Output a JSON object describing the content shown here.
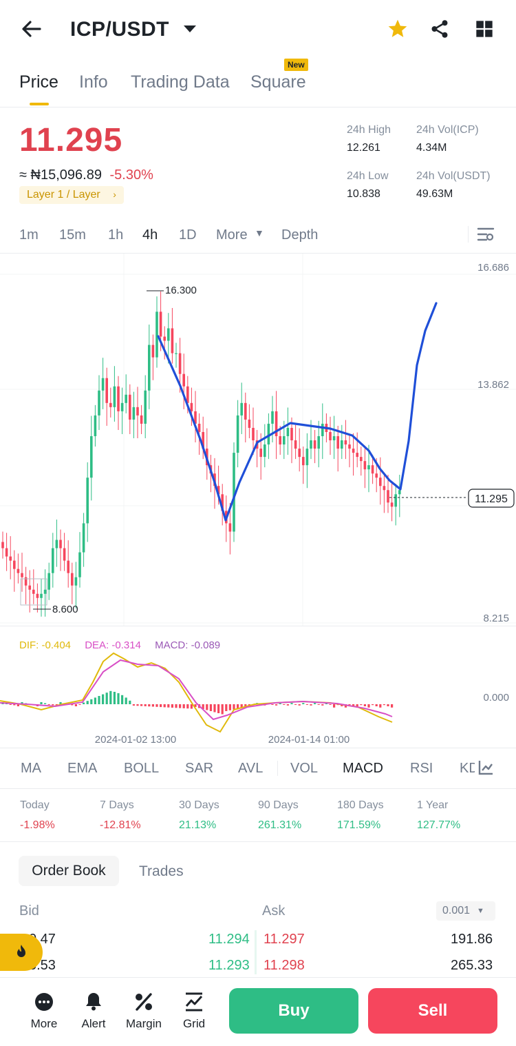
{
  "header": {
    "pair": "ICP/USDT"
  },
  "tabs": [
    {
      "label": "Price"
    },
    {
      "label": "Info"
    },
    {
      "label": "Trading Data"
    },
    {
      "label": "Square"
    }
  ],
  "new_badge": "New",
  "ticker": {
    "last_price": "11.295",
    "fiat_price": "≈ ₦15,096.89",
    "change_pct": "-5.30%",
    "tag": "Layer 1 / Layer",
    "high_label": "24h High",
    "high_value": "12.261",
    "low_label": "24h Low",
    "low_value": "10.838",
    "vol_base_label": "24h Vol(ICP)",
    "vol_base_value": "4.34M",
    "vol_quote_label": "24h Vol(USDT)",
    "vol_quote_value": "49.63M"
  },
  "timeframes": [
    "1m",
    "15m",
    "1h",
    "4h",
    "1D",
    "More",
    "Depth"
  ],
  "active_timeframe": "4h",
  "chart_labels": {
    "y_top": "16.686",
    "y_mid": "13.862",
    "y_bottom": "8.215",
    "max_label": "16.300",
    "min_label": "8.600",
    "last_price_tag": "11.295",
    "macd_zero": "0.000",
    "dif": "DIF: -0.404",
    "dea": "DEA: -0.314",
    "macd": "MACD: -0.089",
    "date_1": "2024-01-02 13:00",
    "date_2": "2024-01-14 01:00"
  },
  "chart_data": {
    "type": "candlestick",
    "ylim": [
      8.215,
      16.686
    ],
    "candles_close": [
      9.9,
      9.7,
      9.6,
      9.4,
      9.3,
      9.2,
      9.0,
      8.9,
      8.8,
      8.7,
      8.8,
      8.9,
      9.3,
      9.9,
      10.1,
      9.9,
      9.6,
      9.3,
      9.0,
      9.2,
      9.8,
      10.5,
      11.6,
      12.6,
      13.1,
      13.7,
      14.0,
      13.4,
      13.3,
      13.8,
      13.2,
      13.4,
      13.6,
      13.0,
      13.3,
      13.1,
      12.9,
      13.7,
      14.8,
      14.5,
      15.6,
      15.0,
      14.9,
      15.2,
      14.6,
      14.6,
      14.1,
      13.8,
      13.4,
      13.2,
      12.9,
      12.7,
      12.3,
      11.9,
      11.7,
      11.4,
      11.2,
      10.8,
      10.5,
      10.3,
      12.2,
      13.1,
      13.4,
      13.0,
      12.8,
      12.5,
      12.3,
      12.1,
      12.4,
      12.9,
      13.2,
      12.6,
      12.4,
      12.6,
      12.8,
      12.5,
      12.3,
      12.1,
      11.9,
      12.3,
      12.5,
      12.3,
      12.6,
      12.9,
      12.7,
      12.5,
      12.6,
      12.3,
      12.5,
      12.4,
      12.3,
      12.2,
      12.1,
      12.0,
      11.8,
      11.9,
      11.7,
      11.6,
      11.4,
      11.3,
      11.0,
      10.9,
      11.2,
      11.3
    ]
  },
  "indicators": [
    "MA",
    "EMA",
    "BOLL",
    "SAR",
    "AVL",
    "VOL",
    "MACD",
    "RSI",
    "KDJ"
  ],
  "active_indicator": "MACD",
  "performance": [
    {
      "label": "Today",
      "value": "-1.98%",
      "dir": "down"
    },
    {
      "label": "7 Days",
      "value": "-12.81%",
      "dir": "down"
    },
    {
      "label": "30 Days",
      "value": "21.13%",
      "dir": "up"
    },
    {
      "label": "90 Days",
      "value": "261.31%",
      "dir": "up"
    },
    {
      "label": "180 Days",
      "value": "171.59%",
      "dir": "up"
    },
    {
      "label": "1 Year",
      "value": "127.77%",
      "dir": "up"
    }
  ],
  "orderbook": {
    "tab_active": "Order Book",
    "tab_other": "Trades",
    "bid_label": "Bid",
    "ask_label": "Ask",
    "precision": "0.001",
    "rows": [
      {
        "bid_qty": "0.47",
        "bid_price": "11.294",
        "ask_price": "11.297",
        "ask_qty": "191.86"
      },
      {
        "bid_qty": "5.53",
        "bid_price": "11.293",
        "ask_price": "11.298",
        "ask_qty": "265.33"
      }
    ]
  },
  "bottom_nav": [
    {
      "label": "More",
      "icon": "more-dots-icon"
    },
    {
      "label": "Alert",
      "icon": "bell-icon"
    },
    {
      "label": "Margin",
      "icon": "percent-icon"
    },
    {
      "label": "Grid",
      "icon": "grid-bot-icon"
    }
  ],
  "buttons": {
    "buy": "Buy",
    "sell": "Sell"
  },
  "colors": {
    "up": "#2ebd85",
    "down": "#f6465d",
    "accent": "#f0b90b",
    "drawing": "#1f4fd8"
  }
}
